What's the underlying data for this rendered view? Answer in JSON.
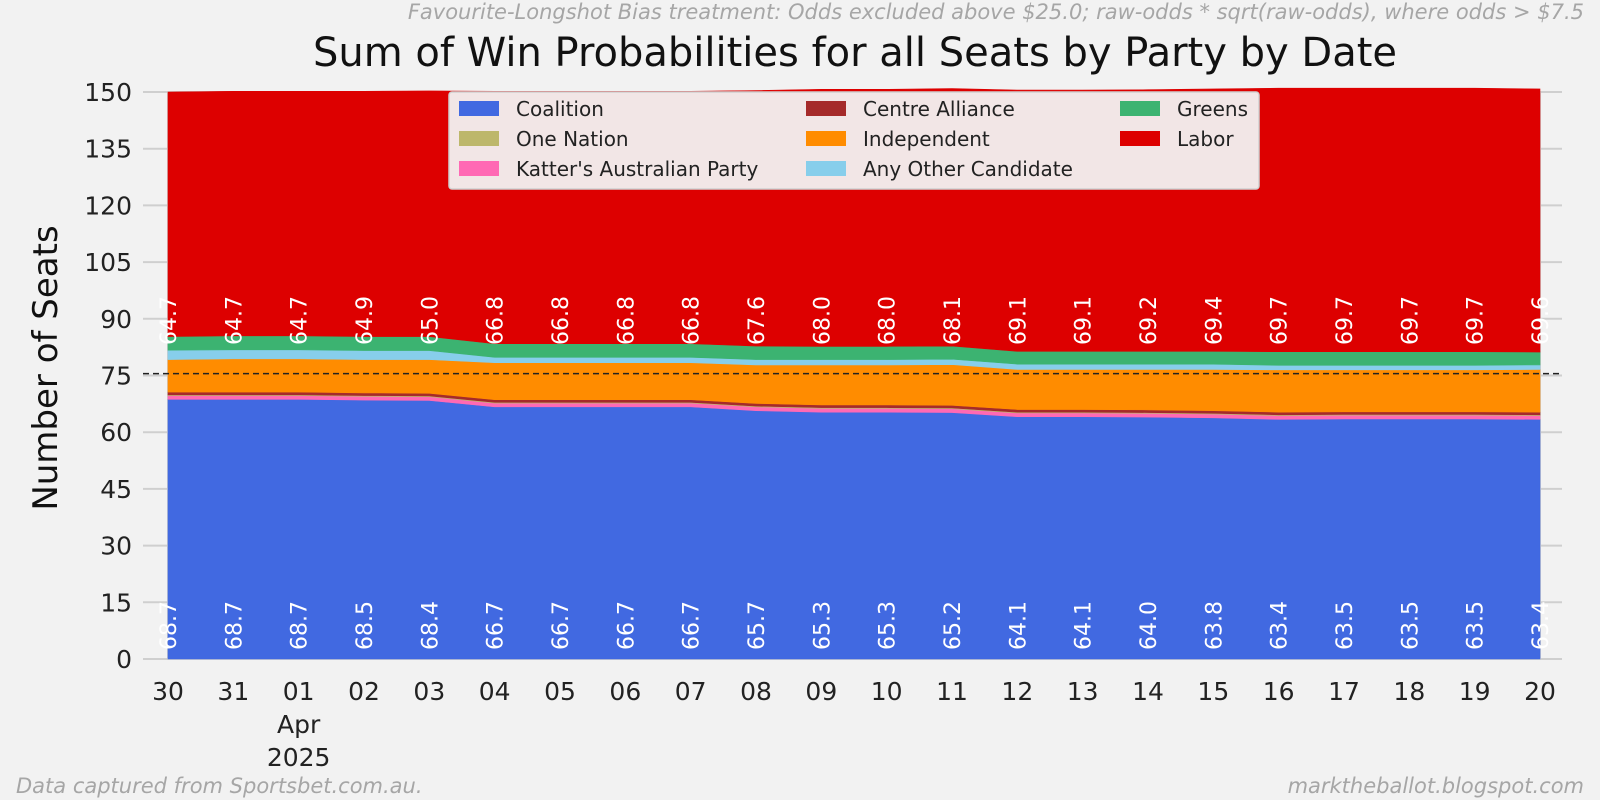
{
  "chart_data": {
    "type": "area",
    "stacked": true,
    "title": "Sum of Win Probabilities for all Seats by Party by Date",
    "subtitle": "Favourite-Longshot Bias treatment: Odds excluded above $25.0; raw-odds * sqrt(raw-odds), where odds > $7.5",
    "ylabel": "Number of Seats",
    "xlabel": "",
    "ylim": [
      0,
      150
    ],
    "yticks": [
      0,
      15,
      30,
      45,
      60,
      75,
      90,
      105,
      120,
      135,
      150
    ],
    "majority_line": 75.5,
    "x": [
      "2025-03-30",
      "2025-03-31",
      "2025-04-01",
      "2025-04-02",
      "2025-04-03",
      "2025-04-04",
      "2025-04-05",
      "2025-04-06",
      "2025-04-07",
      "2025-04-08",
      "2025-04-09",
      "2025-04-10",
      "2025-04-11",
      "2025-04-12",
      "2025-04-13",
      "2025-04-14",
      "2025-04-15",
      "2025-04-16",
      "2025-04-17",
      "2025-04-18",
      "2025-04-19",
      "2025-04-20"
    ],
    "x_tick_labels": [
      "30",
      "31",
      "01",
      "02",
      "03",
      "04",
      "05",
      "06",
      "07",
      "08",
      "09",
      "10",
      "11",
      "12",
      "13",
      "14",
      "15",
      "16",
      "17",
      "18",
      "19",
      "20"
    ],
    "x_tick_sublabel": {
      "index": 2,
      "month": "Apr",
      "year": "2025"
    },
    "legend_position": "top-center",
    "legend_columns": 3,
    "series": [
      {
        "name": "Coalition",
        "color": "#4169e1",
        "values": [
          68.7,
          68.7,
          68.7,
          68.5,
          68.4,
          66.7,
          66.7,
          66.7,
          66.7,
          65.7,
          65.3,
          65.3,
          65.2,
          64.1,
          64.1,
          64.0,
          63.8,
          63.4,
          63.5,
          63.5,
          63.5,
          63.4
        ]
      },
      {
        "name": "Katter's Australian Party",
        "color": "#ff69b4",
        "values": [
          1.0,
          1.0,
          1.0,
          1.0,
          1.0,
          1.0,
          1.0,
          1.0,
          1.0,
          1.0,
          1.0,
          1.0,
          1.0,
          1.0,
          1.0,
          1.0,
          1.0,
          1.0,
          1.0,
          1.0,
          1.0,
          1.0
        ]
      },
      {
        "name": "One Nation",
        "color": "#bdb76b",
        "values": [
          0.2,
          0.2,
          0.2,
          0.2,
          0.2,
          0.2,
          0.2,
          0.2,
          0.2,
          0.2,
          0.2,
          0.2,
          0.2,
          0.2,
          0.2,
          0.2,
          0.2,
          0.2,
          0.2,
          0.2,
          0.2,
          0.2
        ]
      },
      {
        "name": "Centre Alliance",
        "color": "#a52a2a",
        "values": [
          0.7,
          0.7,
          0.7,
          0.7,
          0.7,
          0.7,
          0.7,
          0.7,
          0.7,
          0.7,
          0.7,
          0.7,
          0.7,
          0.7,
          0.7,
          0.7,
          0.7,
          0.7,
          0.7,
          0.7,
          0.7,
          0.7
        ]
      },
      {
        "name": "Independent",
        "color": "#ff8c00",
        "values": [
          8.6,
          8.8,
          8.8,
          8.8,
          8.9,
          9.8,
          9.8,
          9.8,
          9.8,
          10.2,
          10.6,
          10.6,
          10.8,
          10.6,
          10.6,
          10.7,
          10.9,
          11.2,
          11.1,
          11.1,
          11.1,
          11.3
        ]
      },
      {
        "name": "Any Other Candidate",
        "color": "#87ceeb",
        "values": [
          2.5,
          2.4,
          2.4,
          2.4,
          2.4,
          1.4,
          1.4,
          1.4,
          1.4,
          1.4,
          1.4,
          1.4,
          1.4,
          1.4,
          1.4,
          1.4,
          1.4,
          1.2,
          1.2,
          1.2,
          1.2,
          1.2
        ]
      },
      {
        "name": "Greens",
        "color": "#3cb371",
        "values": [
          3.6,
          3.7,
          3.7,
          3.7,
          3.7,
          3.6,
          3.6,
          3.6,
          3.6,
          3.6,
          3.5,
          3.5,
          3.5,
          3.4,
          3.4,
          3.4,
          3.4,
          3.6,
          3.6,
          3.6,
          3.6,
          3.4
        ]
      },
      {
        "name": "Labor",
        "color": "#dd0000",
        "values": [
          64.7,
          64.7,
          64.7,
          64.9,
          65.0,
          66.8,
          66.8,
          66.8,
          66.8,
          67.6,
          68.0,
          68.0,
          68.1,
          69.1,
          69.1,
          69.2,
          69.4,
          69.7,
          69.7,
          69.7,
          69.7,
          69.6
        ]
      }
    ],
    "legend_order": [
      "Coalition",
      "Centre Alliance",
      "Greens",
      "One Nation",
      "Independent",
      "Labor",
      "Katter's Australian Party",
      "Any Other Candidate"
    ],
    "bottom_label_series": "Coalition",
    "top_label_series": "Labor"
  },
  "footer": {
    "left": "Data captured from Sportsbet.com.au.",
    "right": "marktheballot.blogspot.com"
  }
}
